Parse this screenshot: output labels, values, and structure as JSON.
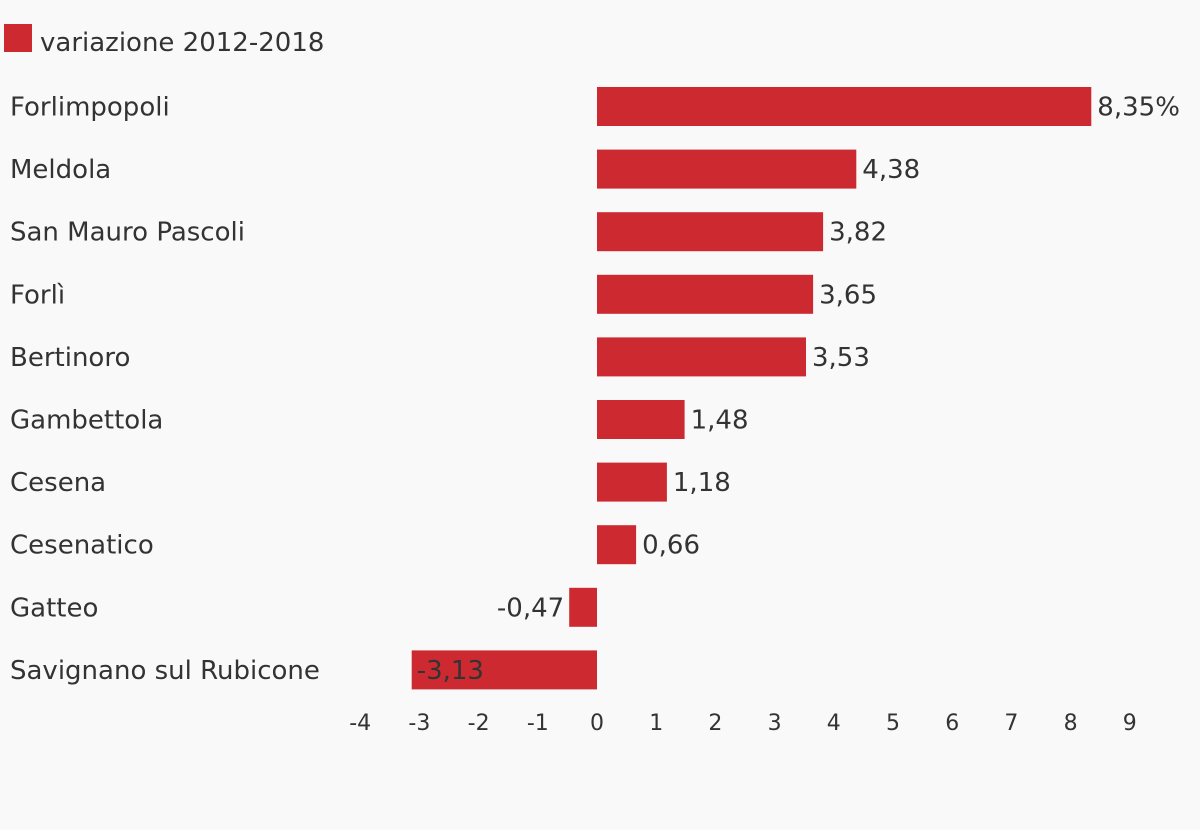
{
  "chart_data": {
    "type": "bar",
    "orientation": "horizontal",
    "legend": {
      "placement": "top-left",
      "entries": [
        {
          "name": "variazione 2012-2018",
          "color": "#cc2a30"
        }
      ]
    },
    "categories": [
      "Forlimpopoli",
      "Meldola",
      "San Mauro Pascoli",
      "Forlì",
      "Bertinoro",
      "Gambettola",
      "Cesena",
      "Cesenatico",
      "Gatteo",
      "Savignano sul Rubicone"
    ],
    "series": [
      {
        "name": "variazione 2012-2018",
        "color": "#cc2a30",
        "values": [
          8.35,
          4.38,
          3.82,
          3.65,
          3.53,
          1.48,
          1.18,
          0.66,
          -0.47,
          -3.13
        ]
      }
    ],
    "data_labels": [
      "8,35%",
      "4,38",
      "3,82",
      "3,65",
      "3,53",
      "1,48",
      "1,18",
      "0,66",
      "-0,47",
      "-3,13"
    ],
    "x_ticks": [
      "-4",
      "-3",
      "-2",
      "-1",
      "0",
      "1",
      "2",
      "3",
      "4",
      "5",
      "6",
      "7",
      "8",
      "9"
    ],
    "xlim": [
      -4,
      9
    ],
    "grid": false,
    "title": "",
    "xlabel": "",
    "ylabel": ""
  }
}
